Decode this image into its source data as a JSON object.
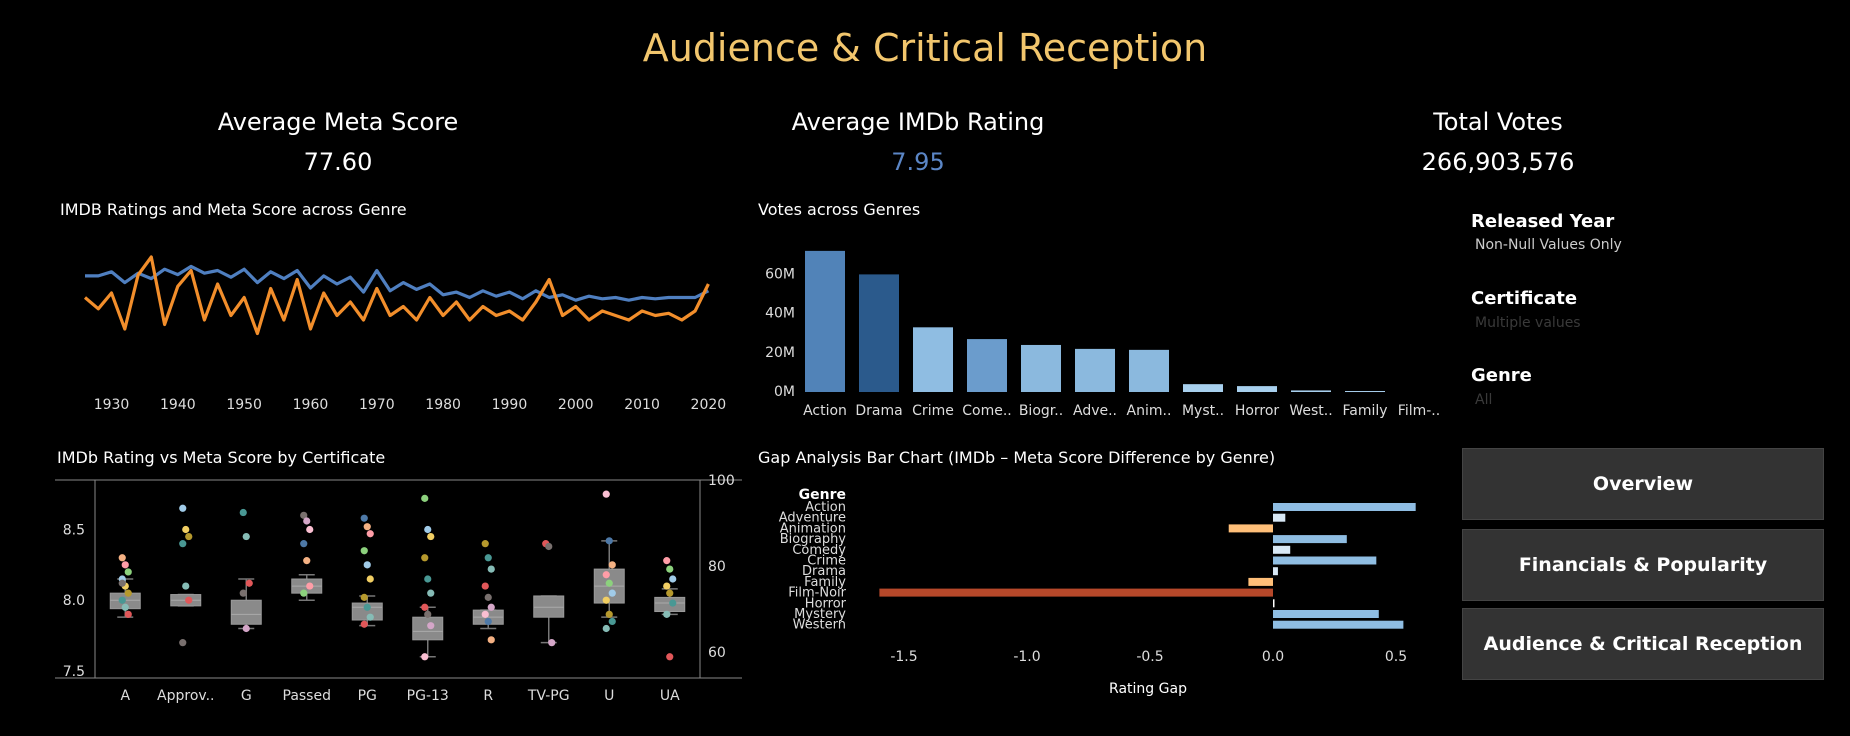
{
  "dashboard": {
    "title": "Audience & Critical Reception",
    "kpis": [
      {
        "label": "Average Meta Score",
        "value": "77.60",
        "color": "#ffffff"
      },
      {
        "label": "Average IMDb Rating",
        "value": "7.95",
        "color": "#5b86c6"
      },
      {
        "label": "Total Votes",
        "value": "266,903,576",
        "color": "#ffffff"
      }
    ],
    "filters": [
      {
        "label": "Released Year",
        "value": "Non-Null Values Only",
        "value_color": "#cccccc"
      },
      {
        "label": "Certificate",
        "value": "Multiple values",
        "value_color": "#3a3a3a"
      },
      {
        "label": "Genre",
        "value": "All",
        "value_color": "#3a3a3a"
      }
    ],
    "nav": [
      {
        "label": "Overview"
      },
      {
        "label": "Financials & Popularity"
      },
      {
        "label": "Audience & Critical Reception"
      }
    ]
  },
  "chart_data": [
    {
      "type": "line",
      "title": "IMDB Ratings and Meta Score across Genre",
      "x_ticks": [
        1930,
        1940,
        1950,
        1960,
        1970,
        1980,
        1990,
        2000,
        2010,
        2020
      ],
      "xlim": [
        1926,
        2021
      ],
      "series": [
        {
          "color": "#4f7fc0",
          "ylim": [
            7.0,
            9.0
          ],
          "x": [
            1926,
            1928,
            1930,
            1932,
            1934,
            1936,
            1938,
            1940,
            1942,
            1944,
            1946,
            1948,
            1950,
            1952,
            1954,
            1956,
            1958,
            1960,
            1962,
            1964,
            1966,
            1968,
            1970,
            1972,
            1974,
            1976,
            1978,
            1980,
            1982,
            1984,
            1986,
            1988,
            1990,
            1992,
            1994,
            1996,
            1998,
            2000,
            2002,
            2004,
            2006,
            2008,
            2010,
            2012,
            2014,
            2016,
            2018,
            2020
          ],
          "values": [
            8.32,
            8.32,
            8.38,
            8.22,
            8.36,
            8.28,
            8.42,
            8.34,
            8.46,
            8.36,
            8.4,
            8.3,
            8.42,
            8.22,
            8.38,
            8.28,
            8.4,
            8.14,
            8.32,
            8.2,
            8.3,
            8.08,
            8.4,
            8.1,
            8.22,
            8.12,
            8.2,
            8.04,
            8.08,
            8.0,
            8.1,
            8.02,
            8.08,
            7.98,
            8.1,
            8.0,
            8.04,
            7.96,
            8.02,
            7.98,
            8.0,
            7.96,
            8.0,
            7.98,
            8.0,
            8.0,
            8.0,
            8.1
          ]
        },
        {
          "color": "#f28e2b",
          "ylim": [
            50,
            110
          ],
          "x": [
            1926,
            1928,
            1930,
            1932,
            1934,
            1936,
            1938,
            1940,
            1942,
            1944,
            1946,
            1948,
            1950,
            1952,
            1954,
            1956,
            1958,
            1960,
            1962,
            1964,
            1966,
            1968,
            1970,
            1972,
            1974,
            1976,
            1978,
            1980,
            1982,
            1984,
            1986,
            1988,
            1990,
            1992,
            1994,
            1996,
            1998,
            2000,
            2002,
            2004,
            2006,
            2008,
            2010,
            2012,
            2014,
            2016,
            2018,
            2020
          ],
          "values": [
            80,
            75,
            82,
            66,
            90,
            98,
            68,
            85,
            92,
            70,
            86,
            72,
            80,
            64,
            84,
            70,
            88,
            66,
            82,
            72,
            78,
            70,
            84,
            72,
            76,
            70,
            80,
            72,
            78,
            70,
            76,
            72,
            74,
            70,
            78,
            88,
            72,
            76,
            70,
            74,
            72,
            70,
            74,
            72,
            73,
            70,
            74,
            86
          ]
        }
      ]
    },
    {
      "type": "bar",
      "title": "Votes across Genres",
      "categories": [
        "Action",
        "Drama",
        "Crime",
        "Come..",
        "Biogr..",
        "Adve..",
        "Anim..",
        "Myst..",
        "Horror",
        "West..",
        "Family",
        "Film-.."
      ],
      "values": [
        72,
        60,
        33,
        27,
        24,
        22,
        21.5,
        4,
        3,
        0.8,
        0.5,
        0
      ],
      "colors": [
        "#5183b8",
        "#2b5a8c",
        "#8fbde2",
        "#6b9ccc",
        "#8bb9de",
        "#8bb9de",
        "#8bb9de",
        "#a8d0ee",
        "#a8d0ee",
        "#a8d0ee",
        "#a8d0ee",
        "#a8d0ee"
      ],
      "y_ticks": [
        {
          "v": 0,
          "label": "0M"
        },
        {
          "v": 20,
          "label": "20M"
        },
        {
          "v": 40,
          "label": "40M"
        },
        {
          "v": 60,
          "label": "60M"
        }
      ],
      "ylim": [
        0,
        75
      ]
    },
    {
      "type": "scatter",
      "title": "IMDb Rating vs Meta Score by Certificate",
      "categories": [
        "A",
        "Approv..",
        "G",
        "Passed",
        "PG",
        "PG-13",
        "R",
        "TV-PG",
        "U",
        "UA"
      ],
      "y_left_ticks": [
        7.5,
        8.0,
        8.5
      ],
      "y_left_lim": [
        7.45,
        8.85
      ],
      "y_right_ticks": [
        60,
        80,
        100
      ],
      "y_right_lim": [
        54,
        100
      ],
      "boxes": [
        {
          "q1": 7.94,
          "med": 8.0,
          "q3": 8.05,
          "lo": 7.88,
          "hi": 8.15
        },
        {
          "q1": 7.96,
          "med": 8.0,
          "q3": 8.04,
          "lo": 7.96,
          "hi": 8.04
        },
        {
          "q1": 7.83,
          "med": 7.9,
          "q3": 8.0,
          "lo": 7.8,
          "hi": 8.15
        },
        {
          "q1": 8.05,
          "med": 8.1,
          "q3": 8.15,
          "lo": 8.0,
          "hi": 8.18
        },
        {
          "q1": 7.86,
          "med": 7.95,
          "q3": 7.98,
          "lo": 7.82,
          "hi": 8.03
        },
        {
          "q1": 7.72,
          "med": 7.78,
          "q3": 7.88,
          "lo": 7.6,
          "hi": 7.95
        },
        {
          "q1": 7.83,
          "med": 7.88,
          "q3": 7.93,
          "lo": 7.8,
          "hi": 7.93
        },
        {
          "q1": 7.88,
          "med": 7.95,
          "q3": 8.03,
          "lo": 7.7,
          "hi": 8.03
        },
        {
          "q1": 7.98,
          "med": 8.1,
          "q3": 8.22,
          "lo": 7.88,
          "hi": 8.42
        },
        {
          "q1": 7.92,
          "med": 7.98,
          "q3": 8.02,
          "lo": 7.9,
          "hi": 8.08
        }
      ],
      "points": [
        [
          8.3,
          8.25,
          8.2,
          8.15,
          8.1,
          8.05,
          8.0,
          7.95,
          7.9,
          8.12
        ],
        [
          8.65,
          8.5,
          8.45,
          8.4,
          8.1,
          8.0,
          7.7
        ],
        [
          8.62,
          8.45,
          8.12,
          8.05,
          7.8
        ],
        [
          8.6,
          8.56,
          8.5,
          8.4,
          8.28,
          8.1,
          8.05
        ],
        [
          8.58,
          8.52,
          8.47,
          8.35,
          8.25,
          8.15,
          8.02,
          7.95,
          7.88,
          7.83
        ],
        [
          8.72,
          8.5,
          8.45,
          8.3,
          8.15,
          8.05,
          7.95,
          7.9,
          7.82,
          7.6
        ],
        [
          8.4,
          8.3,
          8.22,
          8.1,
          8.02,
          7.95,
          7.9,
          7.85,
          7.72
        ],
        [
          8.4,
          8.38,
          7.7
        ],
        [
          8.75,
          8.42,
          8.25,
          8.18,
          8.12,
          8.05,
          8.0,
          7.9,
          7.85,
          7.8
        ],
        [
          8.28,
          8.22,
          8.15,
          8.1,
          8.05,
          7.98,
          7.9,
          7.6
        ]
      ],
      "point_colors": [
        "#f4b183",
        "#ff9da7",
        "#8cd17d",
        "#a0cbe8",
        "#f1ce63",
        "#b6992d",
        "#499894",
        "#86bcb6",
        "#e15759",
        "#79706e",
        "#d4a6c8",
        "#fabfd2",
        "#4e79a7"
      ]
    },
    {
      "type": "bar",
      "orientation": "horizontal",
      "title": "Gap Analysis Bar Chart (IMDb – Meta Score Difference by Genre)",
      "row_header": "Genre",
      "categories": [
        "Action",
        "Adventure",
        "Animation",
        "Biography",
        "Comedy",
        "Crime",
        "Drama",
        "Family",
        "Film-Noir",
        "Horror",
        "Mystery",
        "Western"
      ],
      "values": [
        0.58,
        0.05,
        -0.18,
        0.3,
        0.07,
        0.42,
        0.02,
        -0.1,
        -1.6,
        0.005,
        0.43,
        0.53
      ],
      "colors": [
        "#8fbde2",
        "#d8e8f5",
        "#ffbf79",
        "#8fbde2",
        "#d8e8f5",
        "#8fbde2",
        "#d8e8f5",
        "#ffbf79",
        "#b6482a",
        "#ffffff",
        "#8fbde2",
        "#8fbde2"
      ],
      "x_ticks": [
        -1.5,
        -1.0,
        -0.5,
        0.0,
        0.5
      ],
      "xlim": [
        -1.6,
        0.6
      ],
      "xlabel": "Rating Gap"
    }
  ]
}
